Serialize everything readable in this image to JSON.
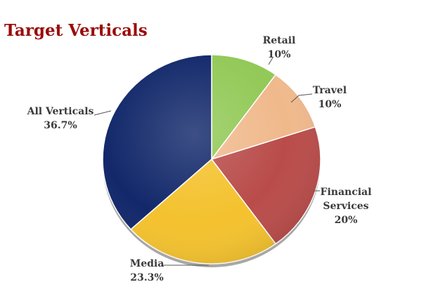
{
  "chart_data": {
    "type": "pie",
    "title": "Target Verticals",
    "slices": [
      {
        "label": "Retail",
        "label_lines": [
          "Retail",
          "10%"
        ],
        "value": 10,
        "color": "#92c957"
      },
      {
        "label": "Travel",
        "label_lines": [
          "Travel",
          "10%"
        ],
        "value": 10,
        "color": "#f0b98c"
      },
      {
        "label": "Financial Services",
        "label_lines": [
          "Financial",
          "Services",
          "20%"
        ],
        "value": 20,
        "color": "#b94c4a"
      },
      {
        "label": "Media",
        "label_lines": [
          "Media",
          "23.3%"
        ],
        "value": 23.3,
        "color": "#f4c22e"
      },
      {
        "label": "All Verticals",
        "label_lines": [
          "All Verticals",
          "36.7%"
        ],
        "value": 36.7,
        "color": "#12286a"
      }
    ]
  }
}
